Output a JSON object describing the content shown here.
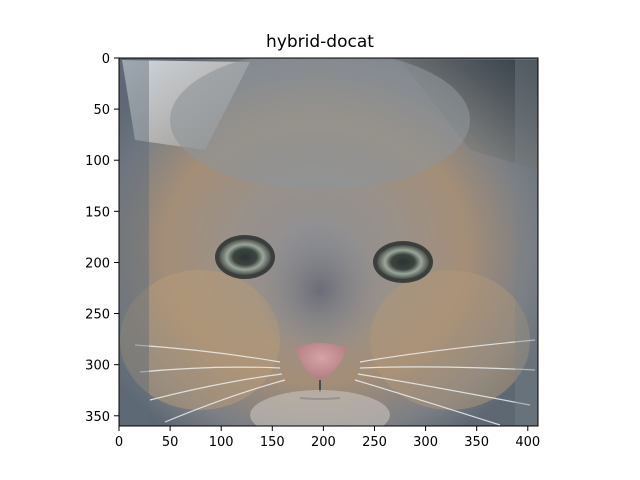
{
  "figure": {
    "title": "hybrid-docat",
    "image_description_icon": "cat-face-image"
  },
  "chart_data": {
    "type": "image",
    "title": "hybrid-docat",
    "xlabel": "",
    "ylabel": "",
    "xlim": [
      0,
      410
    ],
    "ylim": [
      360,
      0
    ],
    "x_ticks": [
      0,
      50,
      100,
      150,
      200,
      250,
      300,
      350,
      400
    ],
    "y_ticks": [
      0,
      50,
      100,
      150,
      200,
      250,
      300,
      350
    ],
    "grid": false,
    "y_axis_inverted": true
  }
}
